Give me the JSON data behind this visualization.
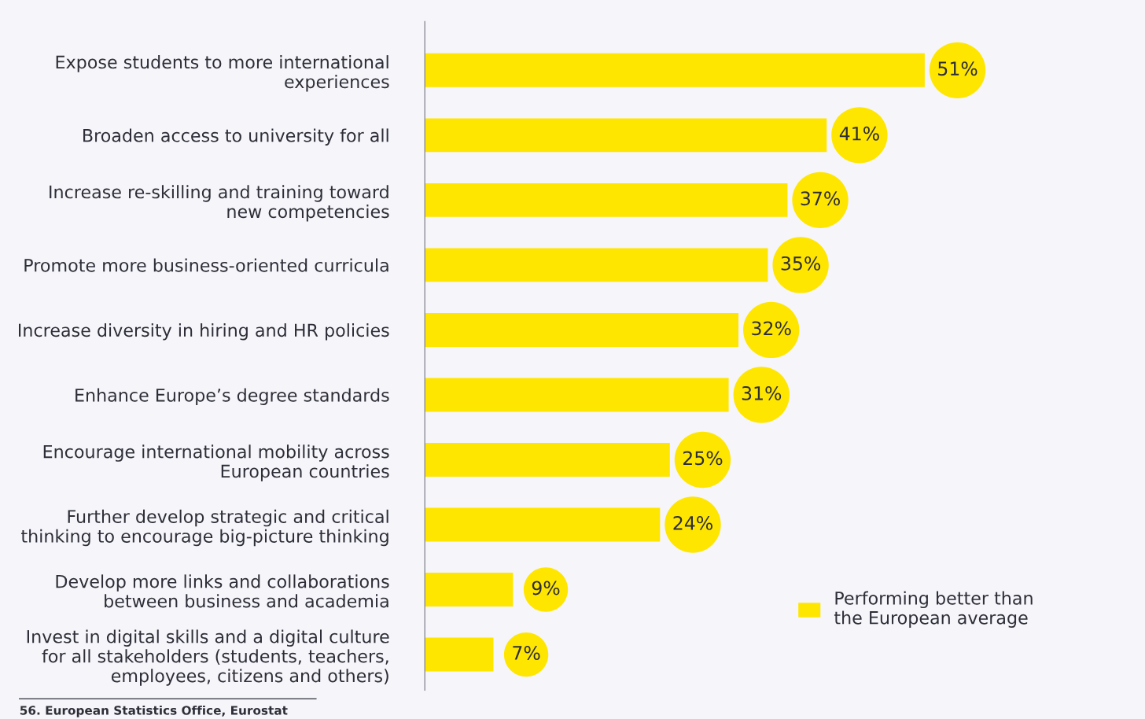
{
  "chart_data": {
    "type": "bar",
    "orientation": "horizontal",
    "categories": [
      "Expose students to more international\nexperiences",
      "Broaden access to university for all",
      "Increase re-skilling and training toward\nnew competencies",
      "Promote more business-oriented curricula",
      "Increase diversity in hiring and HR policies",
      "Enhance Europe’s degree standards",
      "Encourage international mobility across\nEuropean countries",
      "Further develop strategic and critical\nthinking to encourage big-picture thinking",
      "Develop more links and collaborations\nbetween business and academia",
      "Invest in digital skills and a digital culture\nfor all stakeholders (students, teachers,\nemployees, citizens and others)"
    ],
    "series": [
      {
        "name": "Performing better than\nthe European average",
        "color": "#ffe600",
        "values": [
          51,
          41,
          37,
          35,
          32,
          31,
          25,
          24,
          9,
          7
        ],
        "value_labels": [
          "51%",
          "41%",
          "37%",
          "35%",
          "32%",
          "31%",
          "25%",
          "24%",
          "9%",
          "7%"
        ]
      }
    ],
    "legend": "bottom right",
    "grid": false,
    "annotations": [
      "56. European Statistics Office, Eurostat"
    ]
  }
}
